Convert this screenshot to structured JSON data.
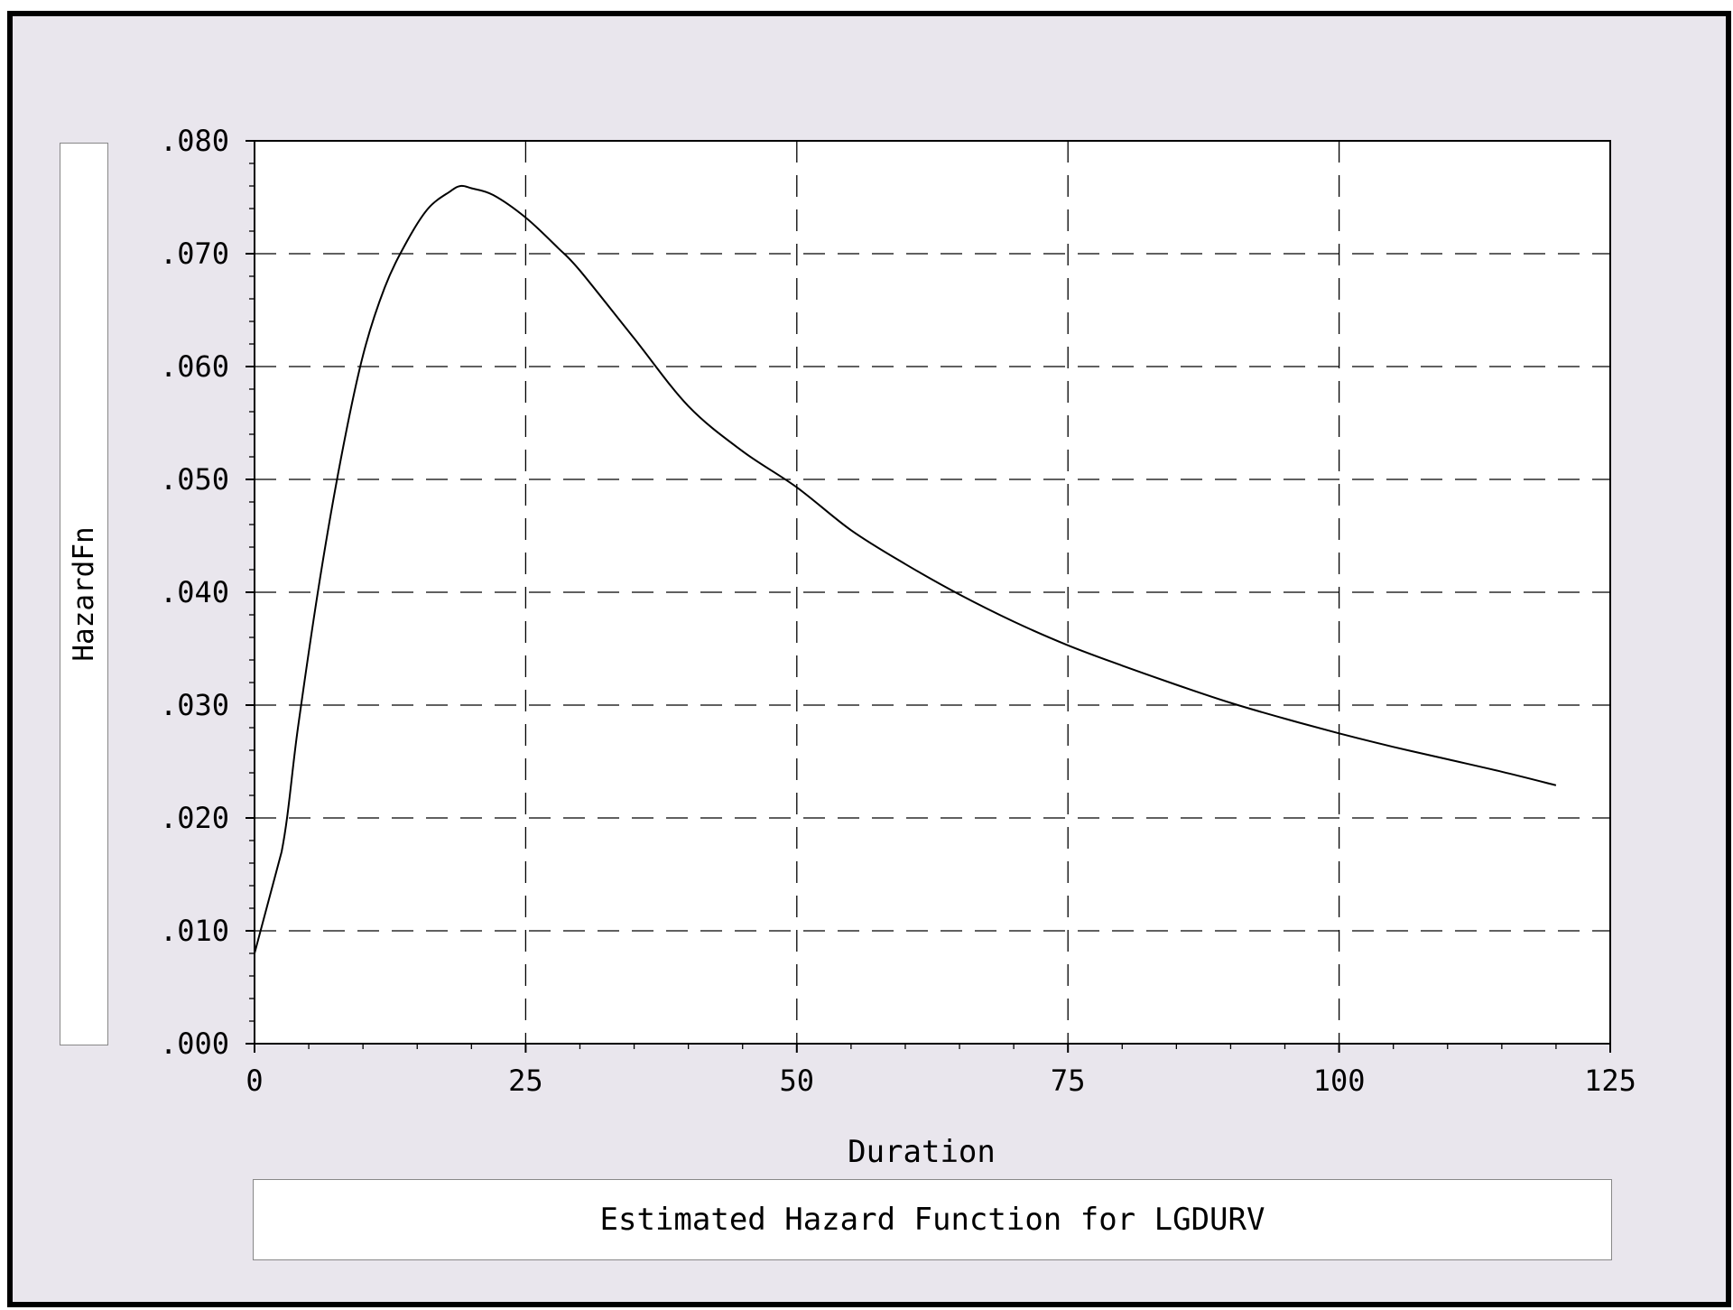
{
  "chart_data": {
    "type": "line",
    "title": "Estimated Hazard Function for LGDURV",
    "xlabel": "Duration",
    "ylabel": "HazardFn",
    "xlim": [
      0,
      125
    ],
    "ylim": [
      0,
      0.08
    ],
    "x_ticks": [
      0,
      25,
      50,
      75,
      100,
      125
    ],
    "x_tick_labels": [
      "0",
      "25",
      "50",
      "75",
      "100",
      "125"
    ],
    "y_ticks": [
      0,
      0.01,
      0.02,
      0.03,
      0.04,
      0.05,
      0.06,
      0.07,
      0.08
    ],
    "y_tick_labels": [
      ".000",
      ".010",
      ".020",
      ".030",
      ".040",
      ".050",
      ".060",
      ".070",
      ".080"
    ],
    "grid": true,
    "legend": "none",
    "series": [
      {
        "color": "#000000",
        "x": [
          0,
          2.5,
          4,
          6,
          8,
          10,
          12,
          14,
          16,
          18,
          19,
          20,
          22,
          25,
          28,
          30,
          35,
          40,
          45,
          50,
          55,
          60,
          65,
          70,
          75,
          80,
          85,
          90,
          95,
          100,
          105,
          110,
          115,
          120
        ],
        "y": [
          0.008,
          0.017,
          0.028,
          0.041,
          0.052,
          0.061,
          0.067,
          0.071,
          0.074,
          0.0755,
          0.076,
          0.0758,
          0.0752,
          0.0732,
          0.0705,
          0.0685,
          0.0625,
          0.0565,
          0.0525,
          0.0493,
          0.0455,
          0.0425,
          0.0398,
          0.0374,
          0.0353,
          0.0335,
          0.0318,
          0.0302,
          0.0288,
          0.0275,
          0.0263,
          0.0252,
          0.0241,
          0.0229
        ]
      }
    ]
  }
}
